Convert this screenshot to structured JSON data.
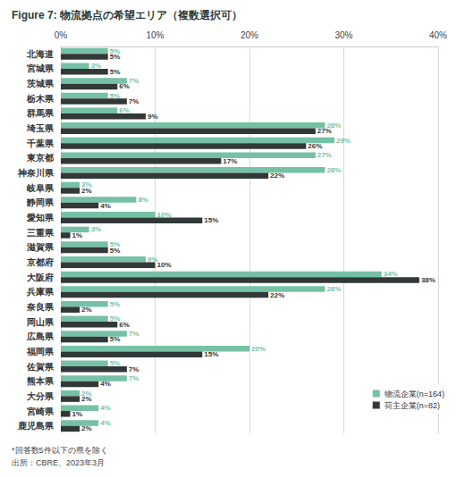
{
  "chart_data": {
    "type": "bar",
    "title": "Figure 7: 物流拠点の希望エリア（複数選択可）",
    "annotations": [
      "*回答数5件以下の県を除く",
      "出所：CBRE、2023年3月"
    ],
    "orientation": "horizontal",
    "categories": [
      "北海道",
      "宮城県",
      "茨城県",
      "栃木県",
      "群馬県",
      "埼玉県",
      "千葉県",
      "東京都",
      "神奈川県",
      "岐阜県",
      "静岡県",
      "愛知県",
      "三重県",
      "滋賀県",
      "京都府",
      "大阪府",
      "兵庫県",
      "奈良県",
      "岡山県",
      "広島県",
      "福岡県",
      "佐賀県",
      "熊本県",
      "大分県",
      "宮崎県",
      "鹿児島県"
    ],
    "series": [
      {
        "name": "物流企業(n=164)",
        "color": "#76c1a5",
        "values": [
          5,
          3,
          7,
          5,
          6,
          28,
          29,
          27,
          28,
          2,
          8,
          10,
          3,
          5,
          9,
          34,
          28,
          5,
          5,
          7,
          20,
          5,
          7,
          2,
          4,
          4
        ],
        "value_labels": [
          "5%",
          "3%",
          "7%",
          "5%",
          "6%",
          "28%",
          "29%",
          "27%",
          "28%",
          "2%",
          "8%",
          "10%",
          "3%",
          "5%",
          "9%",
          "34%",
          "28%",
          "5%",
          "5%",
          "7%",
          "20%",
          "5%",
          "7%",
          "2%",
          "4%",
          "4%"
        ]
      },
      {
        "name": "荷主企業(n=82)",
        "color": "#323838",
        "values": [
          5,
          5,
          6,
          7,
          9,
          27,
          26,
          17,
          22,
          2,
          4,
          15,
          1,
          5,
          10,
          38,
          22,
          2,
          6,
          5,
          15,
          7,
          4,
          2,
          1,
          2
        ],
        "value_labels": [
          "5%",
          "5%",
          "6%",
          "7%",
          "9%",
          "27%",
          "26%",
          "17%",
          "22%",
          "2%",
          "4%",
          "15%",
          "1%",
          "5%",
          "10%",
          "38%",
          "22%",
          "2%",
          "6%",
          "5%",
          "15%",
          "7%",
          "4%",
          "2%",
          "1%",
          "2%"
        ]
      }
    ],
    "xlim": [
      0,
      40
    ],
    "xticks": [
      {
        "value": 0,
        "label": "0%"
      },
      {
        "value": 10,
        "label": "10%"
      },
      {
        "value": 20,
        "label": "20%"
      },
      {
        "value": 30,
        "label": "30%"
      },
      {
        "value": 40,
        "label": "40%"
      }
    ],
    "grid": true,
    "legend": "lower right",
    "data_labels": true
  }
}
